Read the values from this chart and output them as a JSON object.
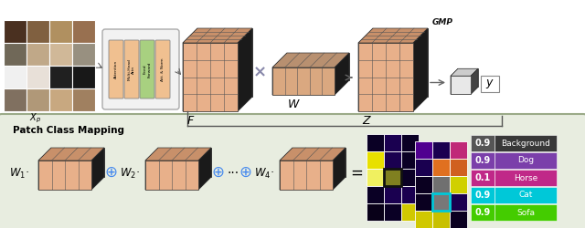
{
  "top_bg": "#ffffff",
  "bottom_bg": "#e8ede0",
  "bottom_border": "#9aaa88",
  "patch_class_mapping_label": "Patch Class Mapping",
  "class_scores": [
    "0.9",
    "0.9",
    "0.1",
    "0.9",
    "0.9"
  ],
  "class_names": [
    "Background",
    "Dog",
    "Horse",
    "Cat",
    "Sofa"
  ],
  "class_colors": [
    "#383838",
    "#7b3faa",
    "#c02888",
    "#00c8d8",
    "#44cc00"
  ],
  "score_bg_colors": [
    "#555555",
    "#7b3faa",
    "#c02888",
    "#00c8d8",
    "#44cc00"
  ],
  "cube_face_color": "#e8b08a",
  "cube_side_color": "#1a1a1a",
  "cube_top_color": "#c8906a",
  "cube_top_dark": "#8a6040",
  "flat_face_color": "#daa880",
  "flat_side_color": "#1a1a1a",
  "flat_top_color": "#b89070",
  "vit_bg": "#f0f0f0",
  "vit_border": "#aaaaaa",
  "box_orange": "#f0c090",
  "box_green": "#a8d080",
  "arrow_color": "#666666",
  "cross_color": "#8888aa",
  "label_F": "$F$",
  "label_W": "$W$",
  "label_Z": "$Z$",
  "label_y": "$y$",
  "label_GMP": "GMP",
  "plus_color": "#4488ee"
}
